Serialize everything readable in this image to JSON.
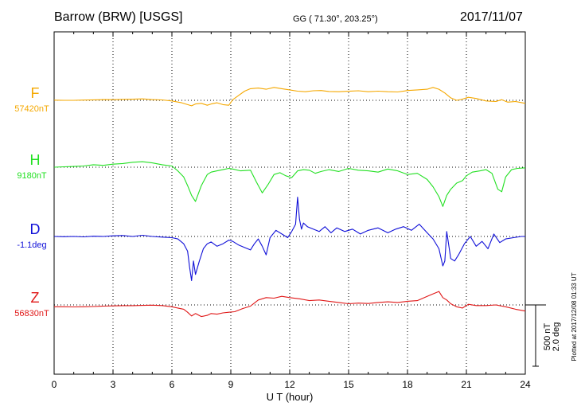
{
  "header": {
    "station": "Barrow (BRW)  [USGS]",
    "coords": "GG ( 71.30°, 203.25°)",
    "date": "2017/11/07"
  },
  "footer": {
    "plotted": "Plotted at 2017/12/08 01:33 UT"
  },
  "chart_data": {
    "type": "line",
    "xlabel": "U T (hour)",
    "xlim": [
      0,
      24
    ],
    "xticks": [
      0,
      3,
      6,
      9,
      12,
      15,
      18,
      21,
      24
    ],
    "grid": true,
    "scale_bar": {
      "nT": "500 nT",
      "deg": "2.0 deg"
    },
    "series": [
      {
        "name": "F",
        "baseline": "57420nT",
        "color": "#f5a800",
        "offset": 0,
        "x": [
          0,
          0.5,
          1,
          1.5,
          2,
          2.5,
          3,
          3.5,
          4,
          4.5,
          5,
          5.5,
          6,
          6.5,
          6.8,
          7,
          7.2,
          7.5,
          7.8,
          8,
          8.3,
          8.6,
          8.9,
          9.1,
          9.4,
          9.7,
          10,
          10.4,
          10.8,
          11.2,
          11.6,
          12,
          12.4,
          12.8,
          13.2,
          13.6,
          14,
          14.5,
          15,
          15.5,
          16,
          16.5,
          17,
          17.5,
          18,
          18.5,
          19,
          19.3,
          19.6,
          19.9,
          20.2,
          20.5,
          20.8,
          21.1,
          21.5,
          22,
          22.5,
          22.8,
          23.1,
          23.5,
          24
        ],
        "values": [
          1,
          0,
          0,
          2,
          4,
          6,
          5,
          8,
          9,
          12,
          6,
          3,
          -5,
          -20,
          -35,
          -45,
          -30,
          -25,
          -40,
          -30,
          -20,
          -35,
          -40,
          5,
          40,
          75,
          95,
          100,
          90,
          105,
          95,
          85,
          75,
          70,
          78,
          80,
          72,
          70,
          74,
          78,
          70,
          75,
          70,
          68,
          80,
          85,
          90,
          105,
          90,
          60,
          20,
          0,
          10,
          25,
          15,
          -5,
          -10,
          5,
          -15,
          -10,
          -25
        ]
      },
      {
        "name": "H",
        "baseline": "9180nT",
        "color": "#22e022",
        "offset": -350,
        "x": [
          0,
          0.5,
          1,
          1.5,
          2,
          2.5,
          3,
          3.5,
          4,
          4.5,
          5,
          5.5,
          6,
          6.3,
          6.6,
          6.8,
          7,
          7.2,
          7.5,
          7.8,
          8,
          8.3,
          8.6,
          8.9,
          9.1,
          9.5,
          10,
          10.3,
          10.6,
          10.9,
          11.2,
          11.5,
          11.8,
          12.1,
          12.4,
          12.7,
          13,
          13.3,
          13.6,
          14,
          14.5,
          15,
          15.5,
          16,
          16.5,
          17,
          17.5,
          18,
          18.5,
          19,
          19.3,
          19.6,
          19.8,
          20,
          20.2,
          20.5,
          20.8,
          21,
          21.3,
          21.7,
          22,
          22.3,
          22.6,
          22.8,
          23,
          23.3,
          23.6,
          24
        ],
        "values": [
          0,
          3,
          6,
          10,
          20,
          15,
          25,
          30,
          40,
          45,
          35,
          20,
          10,
          -30,
          -80,
          -150,
          -230,
          -280,
          -150,
          -60,
          -40,
          -30,
          -20,
          -10,
          -15,
          -30,
          -25,
          -120,
          -210,
          -140,
          -60,
          -45,
          -70,
          -85,
          -30,
          -20,
          -25,
          -50,
          -35,
          -20,
          -35,
          -10,
          -25,
          -30,
          -40,
          -15,
          -30,
          -60,
          -50,
          -100,
          -160,
          -240,
          -320,
          -230,
          -180,
          -130,
          -110,
          -70,
          -40,
          -30,
          -20,
          -50,
          -180,
          -200,
          -80,
          -20,
          -10,
          -5
        ]
      },
      {
        "name": "D",
        "baseline": "-1.1deg",
        "color": "#1010d8",
        "offset": -605,
        "x": [
          0,
          0.5,
          1,
          1.5,
          2,
          2.5,
          3,
          3.5,
          4,
          4.5,
          5,
          5.5,
          6,
          6.3,
          6.6,
          6.8,
          6.9,
          7,
          7.1,
          7.2,
          7.4,
          7.6,
          7.8,
          8,
          8.3,
          8.6,
          8.9,
          9.1,
          9.4,
          9.7,
          10,
          10.2,
          10.4,
          10.6,
          10.8,
          11,
          11.3,
          11.6,
          11.9,
          12.1,
          12.3,
          12.4,
          12.5,
          12.6,
          12.7,
          12.9,
          13.2,
          13.5,
          13.8,
          14.1,
          14.4,
          14.8,
          15.2,
          15.6,
          16,
          16.5,
          17,
          17.4,
          17.8,
          18.2,
          18.6,
          19,
          19.3,
          19.6,
          19.8,
          19.9,
          20,
          20.2,
          20.4,
          20.6,
          20.9,
          21.2,
          21.5,
          21.8,
          22.1,
          22.4,
          22.7,
          23,
          23.4,
          23.8,
          24
        ],
        "values": [
          0,
          -2,
          0,
          -3,
          2,
          0,
          5,
          8,
          0,
          10,
          0,
          -5,
          -10,
          -20,
          -60,
          -120,
          -250,
          -360,
          -200,
          -310,
          -200,
          -100,
          -60,
          -45,
          -80,
          -60,
          -30,
          -40,
          -70,
          -90,
          -110,
          -60,
          -20,
          -80,
          -150,
          -10,
          50,
          20,
          -10,
          40,
          100,
          320,
          140,
          60,
          110,
          80,
          60,
          40,
          80,
          30,
          70,
          40,
          60,
          20,
          50,
          70,
          30,
          60,
          80,
          50,
          100,
          30,
          -20,
          -100,
          -240,
          -200,
          40,
          -180,
          -200,
          -150,
          -60,
          0,
          -80,
          -40,
          -100,
          20,
          -50,
          -20,
          -10,
          0,
          0
        ]
      },
      {
        "name": "Z",
        "baseline": "56830nT",
        "color": "#e01818",
        "offset": -860,
        "x": [
          0,
          0.5,
          1,
          1.5,
          2,
          2.5,
          3,
          3.5,
          4,
          4.5,
          5,
          5.5,
          6,
          6.3,
          6.6,
          6.8,
          7,
          7.2,
          7.5,
          7.8,
          8,
          8.3,
          8.6,
          8.9,
          9.2,
          9.6,
          10,
          10.4,
          10.8,
          11.2,
          11.6,
          12,
          12.5,
          13,
          13.5,
          14,
          14.5,
          15,
          15.5,
          16,
          16.5,
          17,
          17.5,
          18,
          18.5,
          19,
          19.3,
          19.6,
          19.8,
          20,
          20.2,
          20.5,
          20.8,
          21.1,
          21.5,
          22,
          22.5,
          23,
          23.5,
          24
        ],
        "values": [
          -15,
          -15,
          -16,
          -15,
          -13,
          -10,
          -8,
          -6,
          -6,
          -4,
          -2,
          -5,
          -15,
          -25,
          -35,
          -60,
          -90,
          -70,
          -95,
          -85,
          -70,
          -75,
          -65,
          -60,
          -55,
          -30,
          -10,
          40,
          60,
          55,
          70,
          60,
          50,
          35,
          40,
          30,
          20,
          10,
          15,
          12,
          20,
          25,
          20,
          30,
          35,
          70,
          90,
          110,
          60,
          40,
          10,
          -15,
          -25,
          5,
          -5,
          -5,
          0,
          -15,
          -35,
          -50
        ]
      }
    ]
  }
}
